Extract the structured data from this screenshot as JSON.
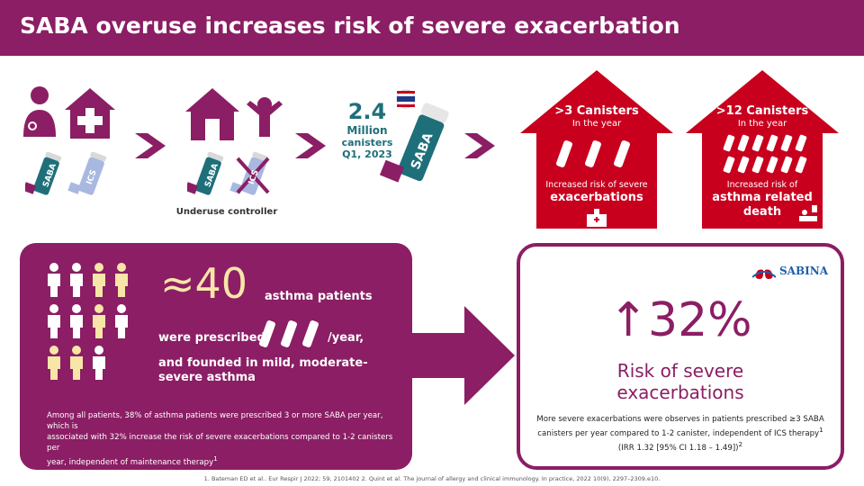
{
  "header": {
    "title": "SABA overuse increases risk of severe exacerbation"
  },
  "top": {
    "inhaler_saba": "SABA",
    "inhaler_ics": "ICS",
    "underuse_label": "Underuse controller",
    "stat_value": "2.4",
    "stat_unit": "Million",
    "stat_line2": "canisters",
    "stat_line3": "Q1, 2023",
    "big_inhaler_label": "SABA",
    "house1": {
      "title": ">3 Canisters",
      "sub": "In the year",
      "risk_line1": "Increased risk of severe",
      "risk_line2": "exacerbations"
    },
    "house2": {
      "title": ">12 Canisters",
      "sub": "In the year",
      "risk_line1": "Increased risk of",
      "risk_line2": "asthma related",
      "risk_line3": "death"
    }
  },
  "left_panel": {
    "approx_value": "≈40",
    "line1": "asthma patients",
    "line2a": "were prescribed",
    "line2b": "/year,",
    "line3": "and founded in mild, moderate-",
    "line4": "severe asthma",
    "note1": "Among all patients, 38% of asthma patients were prescribed 3 or more SABA per year, which is",
    "note2": "associated with 32% increase the risk of severe exacerbations compared to 1-2 canisters per",
    "note3": "year, independent of maintenance therapy",
    "note_sup": "1"
  },
  "right_panel": {
    "logo_text": "SABINA",
    "big_value": "↑32%",
    "label1": "Risk of severe",
    "label2": "exacerbations",
    "note1": "More severe exacerbations were observes in patients prescribed ≥3 SABA",
    "note2": "canisters per year compared to 1-2 canister, independent of ICS therapy",
    "note2_sup": "1",
    "note3": "(IRR 1.32 [95% CI 1.18 – 1.49])",
    "note3_sup": "2"
  },
  "footer": {
    "refs": "1. Bateman ED et al.. Eur Respir J 2022; 59, 2101402   2. Quint et al. The journal of allergy and clinical immunology.  In practice, 2022 10(9), 2297–2309.e10."
  },
  "colors": {
    "brand": "#8b1e64",
    "red": "#c8001e",
    "light_yellow": "#f7e6a8",
    "ics_blue": "#a9b8e0",
    "saba_teal": "#1e6f7a"
  }
}
